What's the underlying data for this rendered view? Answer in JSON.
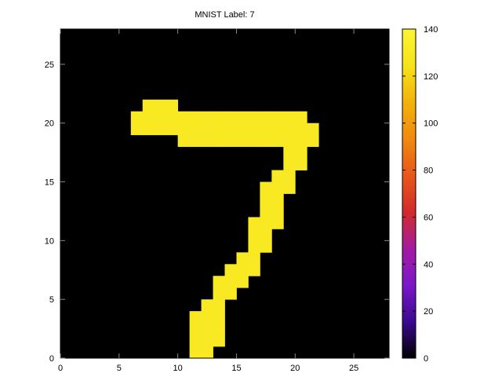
{
  "chart_data": {
    "type": "heatmap",
    "title": "MNIST Label: 7",
    "xlabel": "",
    "ylabel": "",
    "xlim": [
      0,
      28
    ],
    "ylim": [
      0,
      28
    ],
    "x_ticks": [
      0,
      5,
      10,
      15,
      20,
      25
    ],
    "y_ticks": [
      0,
      5,
      10,
      15,
      20,
      25
    ],
    "background_value": 0,
    "pixel_value": 130,
    "filled_pixels": [
      [
        7,
        21
      ],
      [
        8,
        21
      ],
      [
        9,
        21
      ],
      [
        6,
        20
      ],
      [
        7,
        20
      ],
      [
        8,
        20
      ],
      [
        9,
        20
      ],
      [
        10,
        20
      ],
      [
        11,
        20
      ],
      [
        12,
        20
      ],
      [
        13,
        20
      ],
      [
        14,
        20
      ],
      [
        15,
        20
      ],
      [
        16,
        20
      ],
      [
        17,
        20
      ],
      [
        18,
        20
      ],
      [
        19,
        20
      ],
      [
        20,
        20
      ],
      [
        6,
        19
      ],
      [
        7,
        19
      ],
      [
        8,
        19
      ],
      [
        9,
        19
      ],
      [
        10,
        19
      ],
      [
        11,
        19
      ],
      [
        12,
        19
      ],
      [
        13,
        19
      ],
      [
        14,
        19
      ],
      [
        15,
        19
      ],
      [
        16,
        19
      ],
      [
        17,
        19
      ],
      [
        18,
        19
      ],
      [
        19,
        19
      ],
      [
        20,
        19
      ],
      [
        21,
        19
      ],
      [
        10,
        18
      ],
      [
        11,
        18
      ],
      [
        12,
        18
      ],
      [
        13,
        18
      ],
      [
        14,
        18
      ],
      [
        15,
        18
      ],
      [
        16,
        18
      ],
      [
        17,
        18
      ],
      [
        18,
        18
      ],
      [
        19,
        18
      ],
      [
        20,
        18
      ],
      [
        21,
        18
      ],
      [
        19,
        17
      ],
      [
        20,
        17
      ],
      [
        19,
        16
      ],
      [
        20,
        16
      ],
      [
        18,
        15
      ],
      [
        19,
        15
      ],
      [
        17,
        14
      ],
      [
        18,
        14
      ],
      [
        19,
        14
      ],
      [
        17,
        13
      ],
      [
        18,
        13
      ],
      [
        17,
        12
      ],
      [
        18,
        12
      ],
      [
        16,
        11
      ],
      [
        17,
        11
      ],
      [
        18,
        11
      ],
      [
        16,
        10
      ],
      [
        17,
        10
      ],
      [
        16,
        9
      ],
      [
        17,
        9
      ],
      [
        15,
        8
      ],
      [
        16,
        8
      ],
      [
        14,
        7
      ],
      [
        15,
        7
      ],
      [
        16,
        7
      ],
      [
        13,
        6
      ],
      [
        14,
        6
      ],
      [
        15,
        6
      ],
      [
        13,
        5
      ],
      [
        14,
        5
      ],
      [
        12,
        4
      ],
      [
        13,
        4
      ],
      [
        11,
        3
      ],
      [
        12,
        3
      ],
      [
        13,
        3
      ],
      [
        11,
        2
      ],
      [
        12,
        2
      ],
      [
        13,
        2
      ],
      [
        11,
        1
      ],
      [
        12,
        1
      ],
      [
        13,
        1
      ],
      [
        11,
        0
      ],
      [
        12,
        0
      ]
    ],
    "colorbar": {
      "min": 0,
      "max": 140,
      "ticks": [
        0,
        20,
        40,
        60,
        80,
        100,
        120,
        140
      ],
      "colormap": [
        "#000000",
        "#3a0a8f",
        "#7a18c8",
        "#a41ba0",
        "#d12b2b",
        "#e8571a",
        "#f08a10",
        "#f2b20a",
        "#f6e318",
        "#fbf436"
      ]
    },
    "grid": false,
    "legend": "none"
  }
}
